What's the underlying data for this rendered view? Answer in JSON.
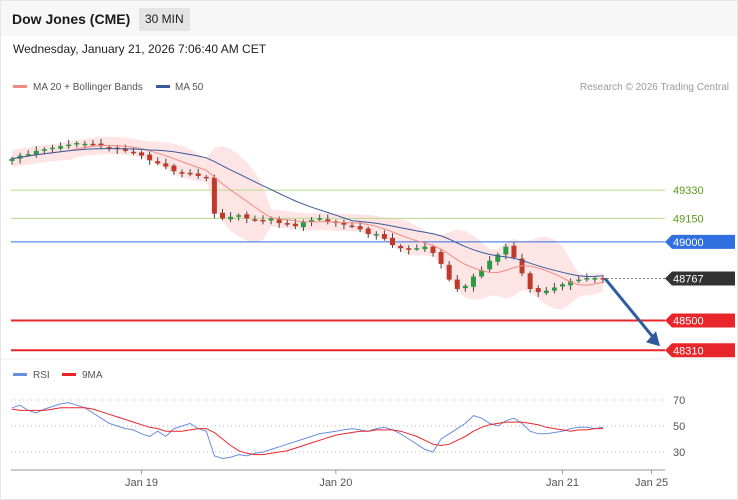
{
  "header": {
    "title": "Dow Jones (CME)",
    "timeframe": "30 MIN"
  },
  "datetime": "Wednesday, January 21, 2026 7:06:40 AM CET",
  "credit": "Research © 2026 Trading Central",
  "colors": {
    "ma20": "#f28b82",
    "ma50": "#3b5998",
    "band_fill": "#fde0e0",
    "support": "#e8262a",
    "resistance": "#2f6fe0",
    "target_line": "#b7d98c",
    "target_text": "#5a9a18",
    "current": "#333333",
    "candle_up": "#2f9a44",
    "candle_down": "#c0392b",
    "arrow": "#2e5c9e",
    "rsi": "#6b8ee0",
    "rsi_ma": "#e8262a"
  },
  "chart_data": [
    {
      "type": "candlestick",
      "title": "",
      "legend": {
        "placement": "top-left",
        "entries": [
          {
            "name": "MA 20 + Bollinger Bands",
            "color": "#f28b82"
          },
          {
            "name": "MA 50",
            "color": "#3b5998"
          }
        ]
      },
      "ylim": [
        48280,
        49840
      ],
      "x_ticks": [
        "Jan 19",
        "Jan 20",
        "Jan 21",
        "Jan 25"
      ],
      "close_series": [
        49530,
        49550,
        49560,
        49580,
        49590,
        49600,
        49610,
        49620,
        49630,
        49625,
        49620,
        49610,
        49600,
        49590,
        49580,
        49570,
        49550,
        49520,
        49500,
        49480,
        49450,
        49440,
        49430,
        49420,
        49410,
        49180,
        49150,
        49160,
        49170,
        49150,
        49140,
        49130,
        49150,
        49120,
        49110,
        49100,
        49130,
        49140,
        49150,
        49130,
        49120,
        49110,
        49100,
        49080,
        49050,
        49050,
        49020,
        48980,
        48960,
        48950,
        48960,
        48970,
        48930,
        48860,
        48760,
        48700,
        48720,
        48780,
        48820,
        48880,
        48920,
        48970,
        48900,
        48800,
        48700,
        48680,
        48690,
        48710,
        48730,
        48750,
        48760,
        48770,
        48770,
        48767
      ],
      "levels": [
        {
          "label": "49330",
          "value": 49330,
          "kind": "target"
        },
        {
          "label": "49150",
          "value": 49150,
          "kind": "target"
        },
        {
          "label": "49000",
          "value": 49000,
          "kind": "pivot"
        },
        {
          "label": "48767",
          "value": 48767,
          "kind": "current"
        },
        {
          "label": "48500",
          "value": 48500,
          "kind": "support"
        },
        {
          "label": "48310",
          "value": 48310,
          "kind": "support"
        }
      ],
      "forecast_arrow": {
        "from": 48767,
        "to": 48310
      }
    },
    {
      "type": "line",
      "title": "",
      "legend": {
        "placement": "top-left",
        "entries": [
          {
            "name": "RSI",
            "color": "#6b8ee0"
          },
          {
            "name": "9MA",
            "color": "#e8262a"
          }
        ]
      },
      "ylim": [
        20,
        80
      ],
      "y_ticks": [
        "70",
        "50",
        "30"
      ],
      "series": [
        {
          "name": "RSI",
          "values": [
            64,
            66,
            62,
            60,
            63,
            65,
            67,
            68,
            66,
            64,
            60,
            56,
            52,
            50,
            48,
            47,
            44,
            42,
            46,
            42,
            48,
            50,
            52,
            48,
            46,
            27,
            25,
            26,
            28,
            27,
            29,
            30,
            32,
            34,
            36,
            38,
            40,
            42,
            44,
            45,
            46,
            47,
            48,
            47,
            46,
            48,
            49,
            47,
            44,
            40,
            36,
            32,
            30,
            40,
            44,
            48,
            52,
            58,
            56,
            52,
            50,
            54,
            56,
            52,
            46,
            44,
            44,
            45,
            46,
            48,
            49,
            49,
            48,
            49
          ]
        },
        {
          "name": "9MA",
          "values": [
            63,
            62,
            62,
            62,
            62,
            63,
            64,
            64,
            64,
            64,
            63,
            61,
            59,
            57,
            55,
            53,
            51,
            49,
            48,
            46,
            46,
            46,
            47,
            48,
            48,
            45,
            40,
            35,
            31,
            29,
            28,
            28,
            29,
            30,
            31,
            33,
            35,
            37,
            39,
            41,
            43,
            44,
            45,
            46,
            46,
            47,
            47,
            47,
            46,
            44,
            42,
            39,
            36,
            35,
            36,
            39,
            42,
            46,
            49,
            51,
            52,
            53,
            53,
            53,
            52,
            51,
            49,
            48,
            47,
            46,
            47,
            47,
            48,
            48
          ]
        }
      ]
    }
  ]
}
